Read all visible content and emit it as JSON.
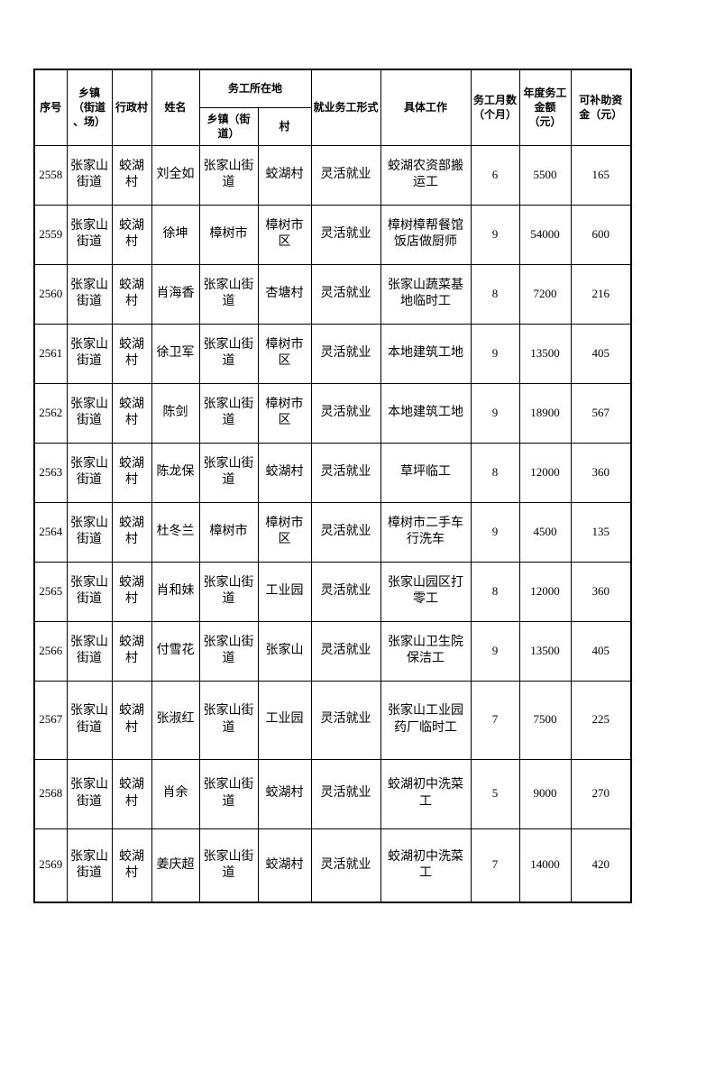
{
  "page": {
    "background_color": "#ffffff",
    "border_color": "#000000",
    "text_color": "#000000"
  },
  "table": {
    "header": {
      "seq": "序号",
      "township": "乡镇\n（街道\n、场）",
      "village": "行政村",
      "name": "姓名",
      "work_location_group": "务工所在地",
      "work_township": "乡镇（街\n道）",
      "work_village": "村",
      "employment_form": "就业务工形式",
      "job": "具体工作",
      "months": "务工月数\n（个月）",
      "annual_amount": "年度务工\n金额\n（元）",
      "subsidy": "可补助资\n金（元）"
    },
    "column_keys": [
      "seq",
      "township",
      "village",
      "name",
      "work_township",
      "work_village",
      "employment_form",
      "job",
      "months",
      "annual_amount",
      "subsidy"
    ],
    "numeric_columns": [
      "seq",
      "months",
      "annual_amount",
      "subsidy"
    ],
    "rows": [
      {
        "seq": "2558",
        "township": "张家山街道",
        "village": "蛟湖村",
        "name": "刘全如",
        "work_township": "张家山街道",
        "work_village": "蛟湖村",
        "employment_form": "灵活就业",
        "job": "蛟湖农资部搬运工",
        "months": "6",
        "annual_amount": "5500",
        "subsidy": "165"
      },
      {
        "seq": "2559",
        "township": "张家山街道",
        "village": "蛟湖村",
        "name": "徐坤",
        "work_township": "樟树市",
        "work_village": "樟树市区",
        "employment_form": "灵活就业",
        "job": "樟树樟帮餐馆饭店做厨师",
        "months": "9",
        "annual_amount": "54000",
        "subsidy": "600"
      },
      {
        "seq": "2560",
        "township": "张家山街道",
        "village": "蛟湖村",
        "name": "肖海香",
        "work_township": "张家山街道",
        "work_village": "杏塘村",
        "employment_form": "灵活就业",
        "job": "张家山蔬菜基地临时工",
        "months": "8",
        "annual_amount": "7200",
        "subsidy": "216"
      },
      {
        "seq": "2561",
        "township": "张家山街道",
        "village": "蛟湖村",
        "name": "徐卫军",
        "work_township": "张家山街道",
        "work_village": "樟树市区",
        "employment_form": "灵活就业",
        "job": "本地建筑工地",
        "months": "9",
        "annual_amount": "13500",
        "subsidy": "405"
      },
      {
        "seq": "2562",
        "township": "张家山街道",
        "village": "蛟湖村",
        "name": "陈剑",
        "work_township": "张家山街道",
        "work_village": "樟树市区",
        "employment_form": "灵活就业",
        "job": "本地建筑工地",
        "months": "9",
        "annual_amount": "18900",
        "subsidy": "567"
      },
      {
        "seq": "2563",
        "township": "张家山街道",
        "village": "蛟湖村",
        "name": "陈龙保",
        "work_township": "张家山街道",
        "work_village": "蛟湖村",
        "employment_form": "灵活就业",
        "job": "草坪临工",
        "months": "8",
        "annual_amount": "12000",
        "subsidy": "360"
      },
      {
        "seq": "2564",
        "township": "张家山街道",
        "village": "蛟湖村",
        "name": "杜冬兰",
        "work_township": "樟树市",
        "work_village": "樟树市区",
        "employment_form": "灵活就业",
        "job": "樟树市二手车行洗车",
        "months": "9",
        "annual_amount": "4500",
        "subsidy": "135"
      },
      {
        "seq": "2565",
        "township": "张家山街道",
        "village": "蛟湖村",
        "name": "肖和妹",
        "work_township": "张家山街道",
        "work_village": "工业园",
        "employment_form": "灵活就业",
        "job": "张家山园区打零工",
        "months": "8",
        "annual_amount": "12000",
        "subsidy": "360"
      },
      {
        "seq": "2566",
        "township": "张家山街道",
        "village": "蛟湖村",
        "name": "付雪花",
        "work_township": "张家山街道",
        "work_village": "张家山",
        "employment_form": "灵活就业",
        "job": "张家山卫生院保洁工",
        "months": "9",
        "annual_amount": "13500",
        "subsidy": "405"
      },
      {
        "seq": "2567",
        "township": "张家山街道",
        "village": "蛟湖村",
        "name": "张淑红",
        "work_township": "张家山街道",
        "work_village": "工业园",
        "employment_form": "灵活就业",
        "job": "张家山工业园药厂临时工",
        "months": "7",
        "annual_amount": "7500",
        "subsidy": "225"
      },
      {
        "seq": "2568",
        "township": "张家山街道",
        "village": "蛟湖村",
        "name": "肖余",
        "work_township": "张家山街道",
        "work_village": "蛟湖村",
        "employment_form": "灵活就业",
        "job": "蛟湖初中洗菜工",
        "months": "5",
        "annual_amount": "9000",
        "subsidy": "270"
      },
      {
        "seq": "2569",
        "township": "张家山街道",
        "village": "蛟湖村",
        "name": "姜庆超",
        "work_township": "张家山街道",
        "work_village": "蛟湖村",
        "employment_form": "灵活就业",
        "job": "蛟湖初中洗菜工",
        "months": "7",
        "annual_amount": "14000",
        "subsidy": "420"
      }
    ]
  }
}
